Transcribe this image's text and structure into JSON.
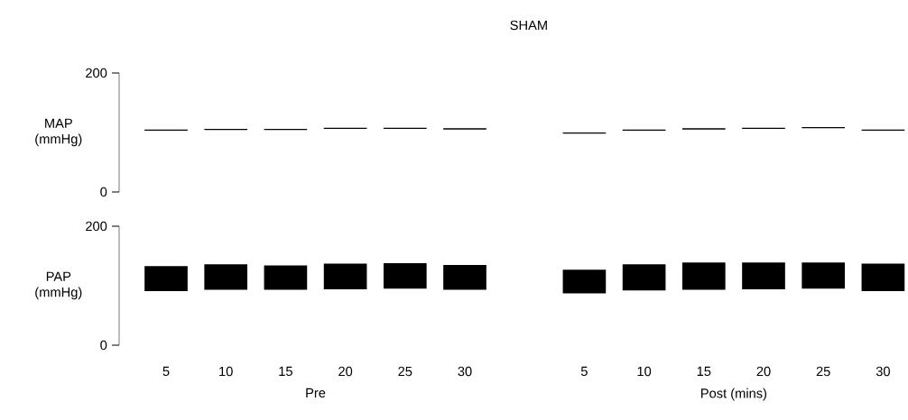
{
  "chart_data": [
    {
      "type": "bar",
      "title": "SHAM",
      "ylabel": "MAP (mmHg)",
      "categories": [
        "5",
        "10",
        "15",
        "20",
        "25",
        "30",
        null,
        "5",
        "10",
        "15",
        "20",
        "25",
        "30"
      ],
      "base": [
        103,
        104,
        104,
        106,
        106,
        105,
        null,
        98,
        103,
        105,
        106,
        107,
        103
      ],
      "values": [
        2,
        2,
        2,
        2,
        2,
        2,
        null,
        2,
        2,
        2,
        2,
        2,
        2
      ],
      "color": "#000000",
      "ylim": [
        0,
        200
      ],
      "yticks": [
        0,
        200
      ],
      "tick_labels": "y"
    },
    {
      "type": "bar",
      "ylabel": "PAP (mmHg)",
      "categories": [
        "5",
        "10",
        "15",
        "20",
        "25",
        "30",
        null,
        "5",
        "10",
        "15",
        "20",
        "25",
        "30"
      ],
      "base": [
        91,
        93,
        93,
        94,
        95,
        93,
        null,
        87,
        92,
        93,
        94,
        95,
        91
      ],
      "values": [
        42,
        43,
        41,
        43,
        43,
        42,
        null,
        40,
        44,
        46,
        45,
        44,
        46
      ],
      "color": "#000000",
      "ylim": [
        0,
        200
      ],
      "yticks": [
        0,
        200
      ],
      "annotations": [
        "Pre",
        "Post (mins)"
      ]
    }
  ]
}
